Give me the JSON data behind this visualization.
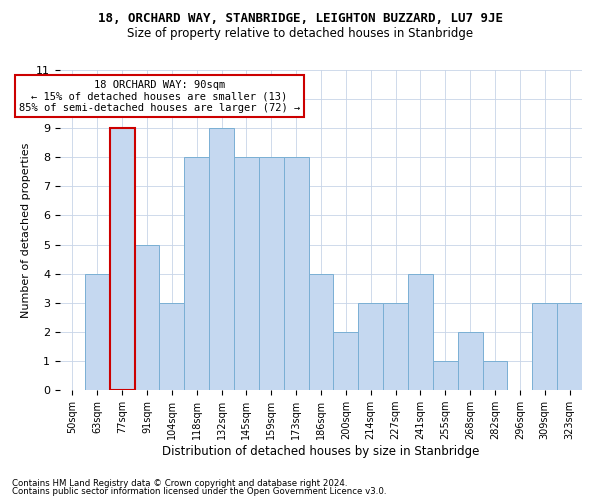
{
  "title1": "18, ORCHARD WAY, STANBRIDGE, LEIGHTON BUZZARD, LU7 9JE",
  "title2": "Size of property relative to detached houses in Stanbridge",
  "xlabel": "Distribution of detached houses by size in Stanbridge",
  "ylabel": "Number of detached properties",
  "categories": [
    "50sqm",
    "63sqm",
    "77sqm",
    "91sqm",
    "104sqm",
    "118sqm",
    "132sqm",
    "145sqm",
    "159sqm",
    "173sqm",
    "186sqm",
    "200sqm",
    "214sqm",
    "227sqm",
    "241sqm",
    "255sqm",
    "268sqm",
    "282sqm",
    "296sqm",
    "309sqm",
    "323sqm"
  ],
  "values": [
    0,
    4,
    9,
    5,
    3,
    8,
    9,
    8,
    8,
    8,
    4,
    2,
    3,
    3,
    4,
    1,
    2,
    1,
    0,
    3,
    3
  ],
  "bar_color": "#c5d8f0",
  "bar_edge_color": "#7aafd4",
  "highlight_bar_index": 2,
  "highlight_edge_color": "#cc0000",
  "annotation_text": "18 ORCHARD WAY: 90sqm\n← 15% of detached houses are smaller (13)\n85% of semi-detached houses are larger (72) →",
  "annotation_box_color": "#ffffff",
  "annotation_edge_color": "#cc0000",
  "ylim": [
    0,
    11
  ],
  "yticks": [
    0,
    1,
    2,
    3,
    4,
    5,
    6,
    7,
    8,
    9,
    10,
    11
  ],
  "footer1": "Contains HM Land Registry data © Crown copyright and database right 2024.",
  "footer2": "Contains public sector information licensed under the Open Government Licence v3.0.",
  "bg_color": "#ffffff",
  "grid_color": "#c8d4e8"
}
